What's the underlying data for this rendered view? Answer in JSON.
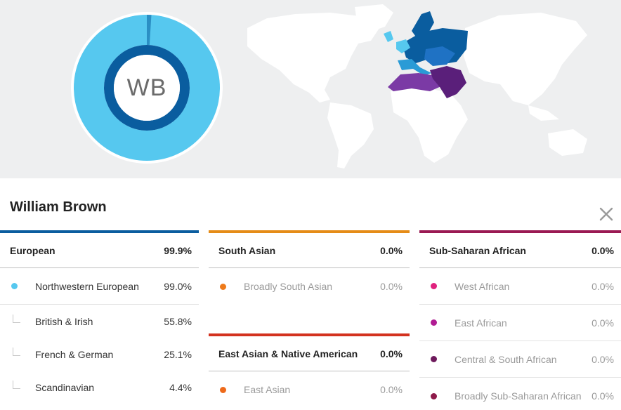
{
  "profile": {
    "initials": "WB",
    "name": "William Brown",
    "donut": {
      "main_fraction": 0.99,
      "main_color": "#56c8ef",
      "ring_color": "#0a5d9f",
      "sliver_color": "#2b8fc4",
      "sliver_fraction": 0.01
    }
  },
  "map": {
    "land_color": "#ffffff",
    "region_colors": {
      "northwestern": "#56c8ef",
      "european": "#0a5d9f",
      "eastern": "#1f72c4",
      "south_european": "#2a9bd6",
      "north_african": "#7b3aa5",
      "middle_east": "#5a1f7a"
    }
  },
  "columns": [
    {
      "accent": "#0a5d9f",
      "heading": {
        "label": "European",
        "value": "99.9%"
      },
      "rows": [
        {
          "type": "dot",
          "color": "#56c8ef",
          "label": "Northwestern European",
          "value": "99.0%",
          "muted": false
        },
        {
          "type": "sub",
          "label": "British & Irish",
          "value": "55.8%",
          "muted": false
        },
        {
          "type": "sub",
          "label": "French & German",
          "value": "25.1%",
          "muted": false
        },
        {
          "type": "sub",
          "label": "Scandinavian",
          "value": "4.4%",
          "muted": false
        }
      ]
    },
    {
      "accent": "#e58c17",
      "heading": {
        "label": "South Asian",
        "value": "0.0%"
      },
      "rows": [
        {
          "type": "dot",
          "color": "#ee7a1a",
          "label": "Broadly South Asian",
          "value": "0.0%",
          "muted": true
        }
      ]
    },
    {
      "accent": "#d3321f",
      "heading": {
        "label": "East Asian & Native American",
        "value": "0.0%"
      },
      "rows": [
        {
          "type": "dot",
          "color": "#ee6a1a",
          "label": "East Asian",
          "value": "0.0%",
          "muted": true
        }
      ]
    },
    {
      "accent": "#9a1a53",
      "heading": {
        "label": "Sub-Saharan African",
        "value": "0.0%"
      },
      "rows": [
        {
          "type": "dot",
          "color": "#e0227e",
          "label": "West African",
          "value": "0.0%",
          "muted": true
        },
        {
          "type": "dot",
          "color": "#b01c93",
          "label": "East African",
          "value": "0.0%",
          "muted": true
        },
        {
          "type": "dot",
          "color": "#6e1a5c",
          "label": "Central & South African",
          "value": "0.0%",
          "muted": true
        },
        {
          "type": "dot",
          "color": "#8e1a4a",
          "label": "Broadly Sub-Saharan African",
          "value": "0.0%",
          "muted": true
        }
      ]
    }
  ]
}
